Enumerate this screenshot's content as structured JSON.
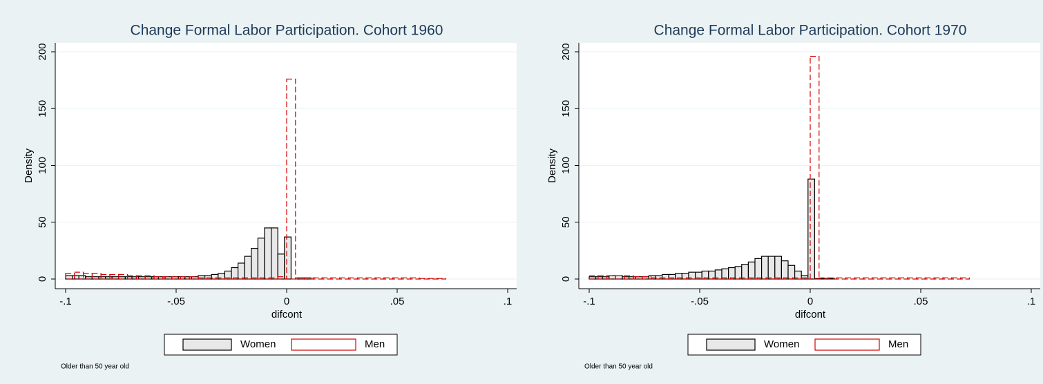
{
  "chart_data": [
    {
      "type": "histogram",
      "title": "Change Formal Labor Participation. Cohort 1960",
      "xlabel": "difcont",
      "ylabel": "Density",
      "note": "Older than 50 year old",
      "xlim": [
        -0.1,
        0.1
      ],
      "ylim": [
        0,
        200
      ],
      "xticks": [
        {
          "value": -0.1,
          "label": "-.1"
        },
        {
          "value": -0.05,
          "label": "-.05"
        },
        0,
        {
          "value": 0.05,
          "label": ".05"
        },
        {
          "value": 0.1,
          "label": ".1"
        }
      ],
      "yticks": [
        0,
        50,
        100,
        150,
        200
      ],
      "grid": true,
      "series": [
        {
          "name": "Women",
          "color": "#000000",
          "fill": "#e8e8e8",
          "bins": [
            -0.1,
            -0.097,
            -0.094,
            -0.091,
            -0.088,
            -0.085,
            -0.082,
            -0.079,
            -0.076,
            -0.073,
            -0.07,
            -0.067,
            -0.064,
            -0.061,
            -0.058,
            -0.055,
            -0.052,
            -0.049,
            -0.046,
            -0.043,
            -0.04,
            -0.037,
            -0.034,
            -0.031,
            -0.028,
            -0.025,
            -0.022,
            -0.019,
            -0.016,
            -0.013,
            -0.01,
            -0.007,
            -0.004,
            -0.001,
            0.002,
            0.005,
            0.008,
            0.011
          ],
          "values": [
            3,
            3,
            3,
            2,
            2,
            2,
            2,
            2,
            2,
            2,
            2,
            2,
            2,
            2,
            2,
            2,
            2,
            2,
            2,
            2,
            3,
            3,
            4,
            5,
            7,
            10,
            14,
            20,
            27,
            36,
            45,
            45,
            22,
            37,
            0,
            1,
            1
          ]
        },
        {
          "name": "Men",
          "color": "#d40000",
          "line_style": "dashed",
          "bins": [
            -0.1,
            -0.096,
            -0.092,
            -0.088,
            -0.084,
            -0.08,
            -0.076,
            -0.072,
            -0.068,
            -0.064,
            -0.06,
            -0.056,
            -0.052,
            -0.048,
            -0.044,
            -0.04,
            -0.036,
            -0.032,
            -0.028,
            -0.024,
            -0.02,
            -0.016,
            -0.012,
            -0.008,
            -0.004,
            0,
            0.004,
            0.008,
            0.012,
            0.016,
            0.02,
            0.024,
            0.028,
            0.032,
            0.036,
            0.04,
            0.044,
            0.048,
            0.052,
            0.056,
            0.06,
            0.064,
            0.068,
            0.072
          ],
          "values": [
            5,
            6,
            5,
            5,
            4,
            4,
            4,
            3,
            3,
            3,
            2,
            2,
            2,
            2,
            2,
            1,
            1,
            1,
            1,
            1,
            1,
            1,
            1,
            1,
            2,
            176,
            1,
            1,
            1,
            1,
            1,
            1,
            1,
            1,
            1,
            1,
            1,
            1,
            1,
            1,
            0.5,
            0.5,
            0.5
          ]
        }
      ]
    },
    {
      "type": "histogram",
      "title": "Change Formal Labor Participation. Cohort 1970",
      "xlabel": "difcont",
      "ylabel": "Density",
      "note": "Older than 50 year old",
      "xlim": [
        -0.1,
        0.1
      ],
      "ylim": [
        0,
        200
      ],
      "xticks": [
        {
          "value": -0.1,
          "label": "-.1"
        },
        {
          "value": -0.05,
          "label": "-.05"
        },
        0,
        {
          "value": 0.05,
          "label": ".05"
        },
        {
          "value": 0.1,
          "label": ".1"
        }
      ],
      "yticks": [
        0,
        50,
        100,
        150,
        200
      ],
      "grid": true,
      "series": [
        {
          "name": "Women",
          "color": "#000000",
          "fill": "#e8e8e8",
          "bins": [
            -0.1,
            -0.097,
            -0.094,
            -0.091,
            -0.088,
            -0.085,
            -0.082,
            -0.079,
            -0.076,
            -0.073,
            -0.07,
            -0.067,
            -0.064,
            -0.061,
            -0.058,
            -0.055,
            -0.052,
            -0.049,
            -0.046,
            -0.043,
            -0.04,
            -0.037,
            -0.034,
            -0.031,
            -0.028,
            -0.025,
            -0.022,
            -0.019,
            -0.016,
            -0.013,
            -0.01,
            -0.007,
            -0.004,
            -0.001,
            0.002,
            0.005,
            0.008,
            0.011
          ],
          "values": [
            2,
            2,
            2,
            3,
            3,
            2,
            2,
            2,
            2,
            3,
            3,
            4,
            4,
            5,
            5,
            6,
            6,
            7,
            7,
            8,
            9,
            10,
            11,
            13,
            15,
            18,
            20,
            20,
            20,
            16,
            12,
            7,
            3,
            88,
            0.5,
            0.5,
            0.5
          ]
        },
        {
          "name": "Men",
          "color": "#d40000",
          "line_style": "dashed",
          "bins": [
            -0.1,
            -0.096,
            -0.092,
            -0.088,
            -0.084,
            -0.08,
            -0.076,
            -0.072,
            -0.068,
            -0.064,
            -0.06,
            -0.056,
            -0.052,
            -0.048,
            -0.044,
            -0.04,
            -0.036,
            -0.032,
            -0.028,
            -0.024,
            -0.02,
            -0.016,
            -0.012,
            -0.008,
            -0.004,
            0,
            0.004,
            0.008,
            0.012,
            0.016,
            0.02,
            0.024,
            0.028,
            0.032,
            0.036,
            0.04,
            0.044,
            0.048,
            0.052,
            0.056,
            0.06,
            0.064,
            0.068,
            0.072
          ],
          "values": [
            3,
            3,
            3,
            3,
            3,
            2,
            2,
            1,
            1,
            1,
            1,
            1,
            1,
            1,
            1,
            1,
            1,
            1,
            1,
            1,
            1,
            1,
            1,
            1,
            1,
            196,
            1,
            1,
            1,
            1,
            1,
            1,
            1,
            1,
            1,
            1,
            1,
            1,
            1,
            1,
            1,
            1,
            1
          ]
        }
      ]
    }
  ]
}
